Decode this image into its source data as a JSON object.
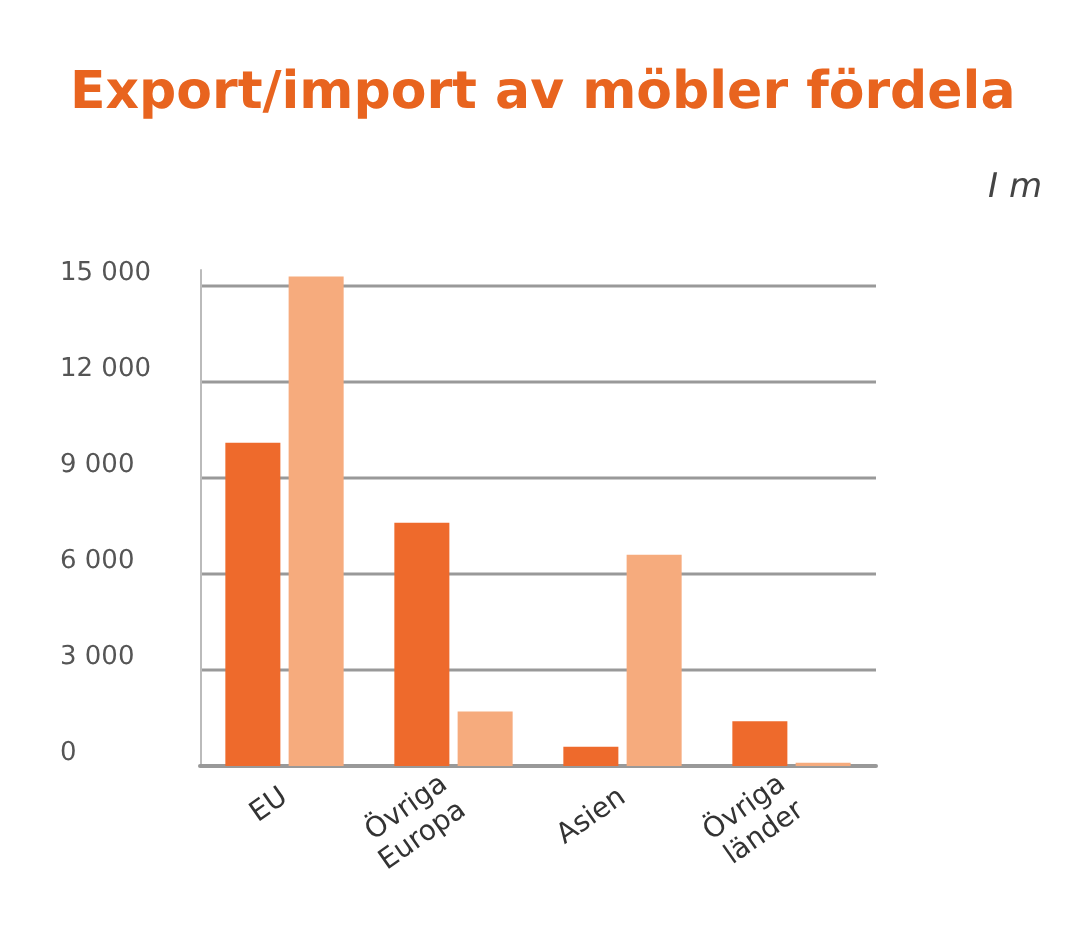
{
  "chart_data": {
    "type": "bar",
    "title": "Export/import av möbler fördela",
    "subtitle": "I m",
    "categories": [
      "EU",
      "Övriga Europa",
      "Asien",
      "Övriga länder"
    ],
    "series": [
      {
        "color": "#ee6a2c",
        "values": [
          10100,
          7600,
          600,
          1400
        ]
      },
      {
        "color": "#f6ab7d",
        "values": [
          15300,
          1700,
          6600,
          100
        ]
      }
    ],
    "ylim": [
      0,
      15500
    ],
    "yticks": [
      0,
      {
        "value": 3000,
        "label": "3 000"
      },
      {
        "value": 6000,
        "label": "6 000"
      },
      {
        "value": 9000,
        "label": "9 000"
      },
      {
        "value": 12000,
        "label": "12 000"
      },
      {
        "value": 15000,
        "label": "15 000"
      }
    ],
    "grid": "y"
  }
}
